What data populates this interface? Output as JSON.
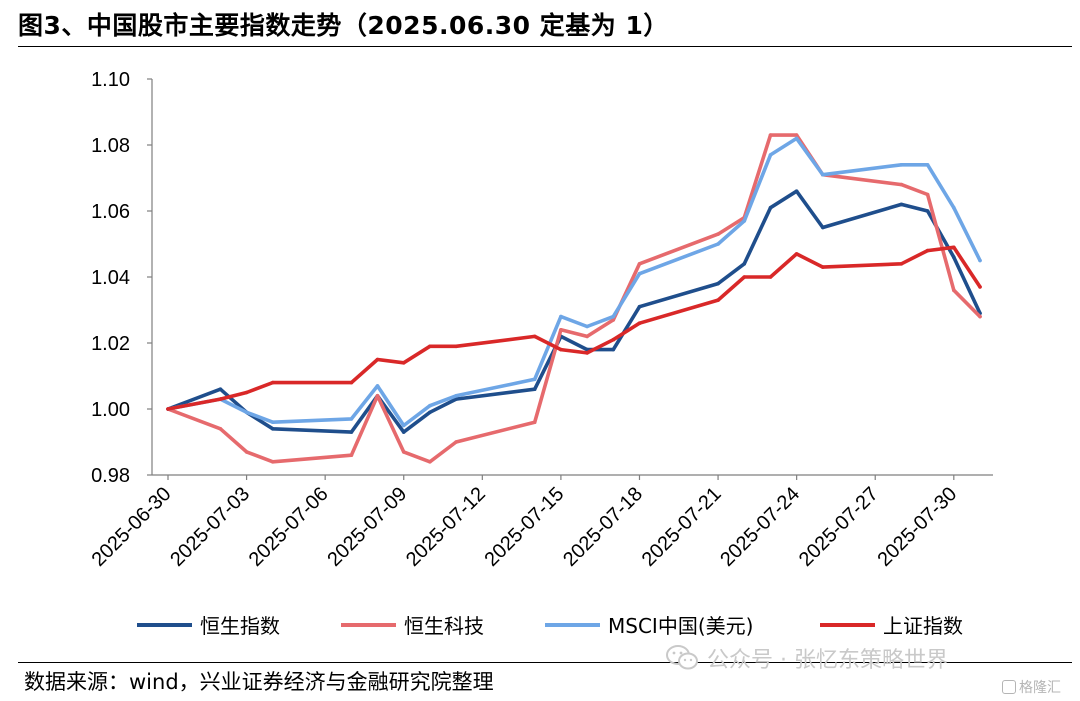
{
  "header": {
    "title": "图3、中国股市主要指数走势（2025.06.30 定基为 1）"
  },
  "footer": {
    "source": "数据来源：wind，兴业证券经济与金融研究院整理",
    "watermark": "公众号 · 张忆东策略世界",
    "corner_logo": "格隆汇"
  },
  "chart_data": {
    "type": "line",
    "title": "图3、中国股市主要指数走势（2025.06.30 定基为 1）",
    "xlabel": "",
    "ylabel": "",
    "ylim": [
      0.98,
      1.1
    ],
    "yticks": [
      "1.10",
      "1.08",
      "1.06",
      "1.04",
      "1.02",
      "1.00",
      "0.98"
    ],
    "yticks_values": [
      1.1,
      1.08,
      1.06,
      1.04,
      1.02,
      1.0,
      0.98
    ],
    "xticks": [
      "2025-06-30",
      "2025-07-03",
      "2025-07-06",
      "2025-07-09",
      "2025-07-12",
      "2025-07-15",
      "2025-07-18",
      "2025-07-21",
      "2025-07-24",
      "2025-07-27",
      "2025-07-30"
    ],
    "grid": false,
    "legend_position": "bottom",
    "x": [
      "2025-06-30",
      "2025-07-02",
      "2025-07-03",
      "2025-07-04",
      "2025-07-07",
      "2025-07-08",
      "2025-07-09",
      "2025-07-10",
      "2025-07-11",
      "2025-07-14",
      "2025-07-15",
      "2025-07-16",
      "2025-07-17",
      "2025-07-18",
      "2025-07-21",
      "2025-07-22",
      "2025-07-23",
      "2025-07-24",
      "2025-07-25",
      "2025-07-28",
      "2025-07-29",
      "2025-07-30",
      "2025-07-31"
    ],
    "series": [
      {
        "name": "恒生指数",
        "color": "#1f4e8c",
        "values": [
          1.0,
          1.006,
          0.999,
          0.994,
          0.993,
          1.004,
          0.993,
          0.999,
          1.003,
          1.006,
          1.022,
          1.018,
          1.018,
          1.031,
          1.038,
          1.044,
          1.061,
          1.066,
          1.055,
          1.062,
          1.06,
          1.046,
          1.029
        ]
      },
      {
        "name": "恒生科技",
        "color": "#e66a6d",
        "values": [
          1.0,
          0.994,
          0.987,
          0.984,
          0.986,
          1.004,
          0.987,
          0.984,
          0.99,
          0.996,
          1.024,
          1.022,
          1.027,
          1.044,
          1.053,
          1.058,
          1.083,
          1.083,
          1.071,
          1.068,
          1.065,
          1.036,
          1.028
        ]
      },
      {
        "name": "MSCI中国(美元)",
        "color": "#6ea6e6",
        "values": [
          1.0,
          1.003,
          0.999,
          0.996,
          0.997,
          1.007,
          0.995,
          1.001,
          1.004,
          1.009,
          1.028,
          1.025,
          1.028,
          1.041,
          1.05,
          1.057,
          1.077,
          1.082,
          1.071,
          1.074,
          1.074,
          1.061,
          1.045
        ]
      },
      {
        "name": "上证指数",
        "color": "#d92828",
        "values": [
          1.0,
          1.003,
          1.005,
          1.008,
          1.008,
          1.015,
          1.014,
          1.019,
          1.019,
          1.022,
          1.018,
          1.017,
          1.021,
          1.026,
          1.033,
          1.04,
          1.04,
          1.047,
          1.043,
          1.044,
          1.048,
          1.049,
          1.037
        ]
      }
    ]
  }
}
